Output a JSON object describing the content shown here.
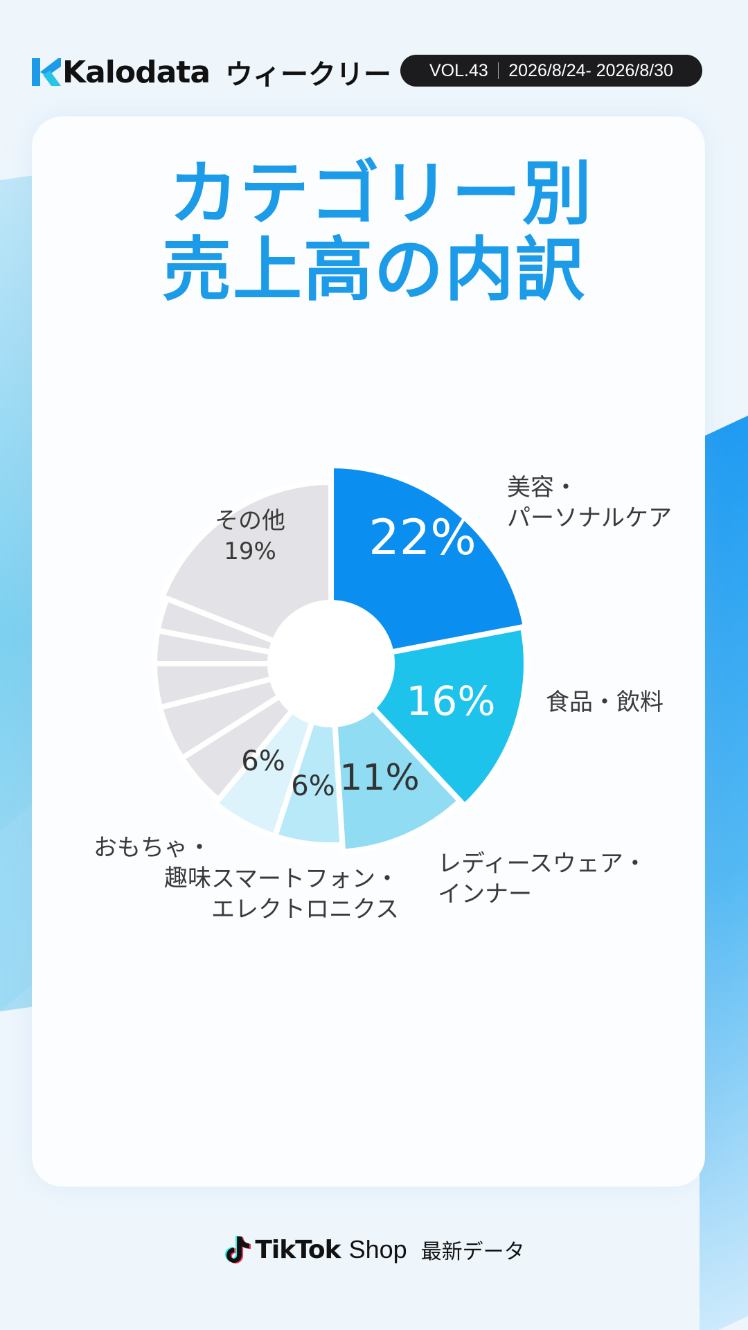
{
  "header": {
    "brand": "Kalodata",
    "weekly": "ウィークリー",
    "volume": "VOL.43",
    "date_range": "2026/8/24- 2026/8/30"
  },
  "title": {
    "line1": "カテゴリー別",
    "line2": "売上高の内訳"
  },
  "footer": {
    "brand": "TikTok",
    "shop": "Shop",
    "latest": "最新データ"
  },
  "colors": {
    "accent": "#1b9be8",
    "beauty": "#0a8ef0",
    "food": "#1ec3ec",
    "ladies": "#8fdcf3",
    "smartphone": "#b8e9f8",
    "toys": "#dcf3fb",
    "other": "#e3e2e6"
  },
  "icons": [
    "kalodata-logo-icon",
    "tiktok-note-icon"
  ],
  "chart_data": {
    "type": "pie",
    "title": "カテゴリー別 売上高の内訳",
    "start": "12 o'clock, clockwise",
    "slices": [
      {
        "label_lines": [
          "美容・",
          "パーソナルケア"
        ],
        "value": 22,
        "display": "22%",
        "color": "#0a8ef0"
      },
      {
        "label_lines": [
          "食品・飲料"
        ],
        "value": 16,
        "display": "16%",
        "color": "#1ec3ec"
      },
      {
        "label_lines": [
          "レディースウェア・",
          "インナー"
        ],
        "value": 11,
        "display": "11%",
        "color": "#8fdcf3"
      },
      {
        "label_lines": [
          "スマートフォン・",
          "エレクトロニクス"
        ],
        "value": 6,
        "display": "6%",
        "color": "#b8e9f8"
      },
      {
        "label_lines": [
          "おもちゃ・",
          "趣味"
        ],
        "value": 6,
        "display": "6%",
        "color": "#dcf3fb"
      },
      {
        "label_lines": [],
        "value": 5,
        "display": "",
        "color": "#e3e2e6"
      },
      {
        "label_lines": [],
        "value": 5,
        "display": "",
        "color": "#e3e2e6"
      },
      {
        "label_lines": [],
        "value": 4,
        "display": "",
        "color": "#e3e2e6"
      },
      {
        "label_lines": [],
        "value": 3,
        "display": "",
        "color": "#e3e2e6"
      },
      {
        "label_lines": [],
        "value": 3,
        "display": "",
        "color": "#e3e2e6"
      },
      {
        "label_lines": [
          "その他",
          "19%"
        ],
        "value": 19,
        "display": "",
        "color": "#e3e2e6"
      }
    ]
  }
}
